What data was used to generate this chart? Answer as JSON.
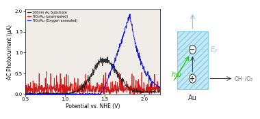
{
  "xlim": [
    0.5,
    2.2
  ],
  "ylim": [
    0.0,
    2.05
  ],
  "xlabel": "Potential vs. NHE (V)",
  "ylabel": "AC Photocurrent (μA)",
  "legend_labels": [
    "100nm Au Substrate",
    "TiO₂/Au (unannealed)",
    "TiO₂/Au (Oxygen annealed)"
  ],
  "legend_colors": [
    "#1a1a1a",
    "#cc0000",
    "#0000dd"
  ],
  "bg_color": "#f0ece8",
  "ef_label": "E_F",
  "au_label": "Au",
  "hv_label": "hω",
  "redox_label": "OH⁻/O₂",
  "box_face_color": "#c5e8f5",
  "box_edge_color": "#87ceeb",
  "arrow_color": "#87ceeb",
  "green_color": "#22cc00",
  "dark_color": "#333333",
  "gray_color": "#777777"
}
